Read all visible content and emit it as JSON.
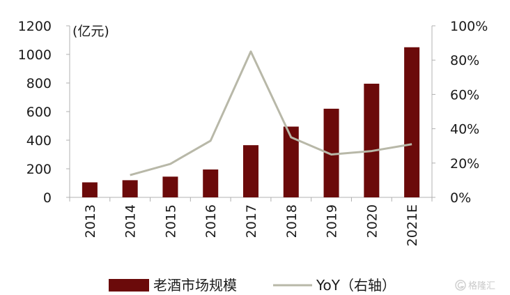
{
  "chart_data": {
    "type": "bar",
    "categories": [
      "2013",
      "2014",
      "2015",
      "2016",
      "2017",
      "2018",
      "2019",
      "2020",
      "2021E"
    ],
    "series": [
      {
        "name": "老酒市场规模",
        "type": "bar",
        "axis": "left",
        "color": "#6b0a0a",
        "values": [
          105,
          120,
          145,
          195,
          365,
          495,
          620,
          795,
          1050
        ]
      },
      {
        "name": "YoY（右轴）",
        "type": "line",
        "axis": "right",
        "color": "#b8b8a8",
        "values": [
          null,
          0.13,
          0.195,
          0.33,
          0.85,
          0.35,
          0.25,
          0.27,
          0.31
        ]
      }
    ],
    "y_left": {
      "unit_label": "(亿元)",
      "range": [
        0,
        1200
      ],
      "ticks": [
        "0",
        "200",
        "400",
        "600",
        "800",
        "1000",
        "1200"
      ]
    },
    "y_right": {
      "range": [
        0,
        1
      ],
      "ticks": [
        "0%",
        "20%",
        "40%",
        "60%",
        "80%",
        "100%"
      ]
    },
    "grid": false,
    "legend_position": "bottom"
  },
  "watermark": {
    "text": "格隆汇",
    "icon": "g-logo-icon"
  }
}
